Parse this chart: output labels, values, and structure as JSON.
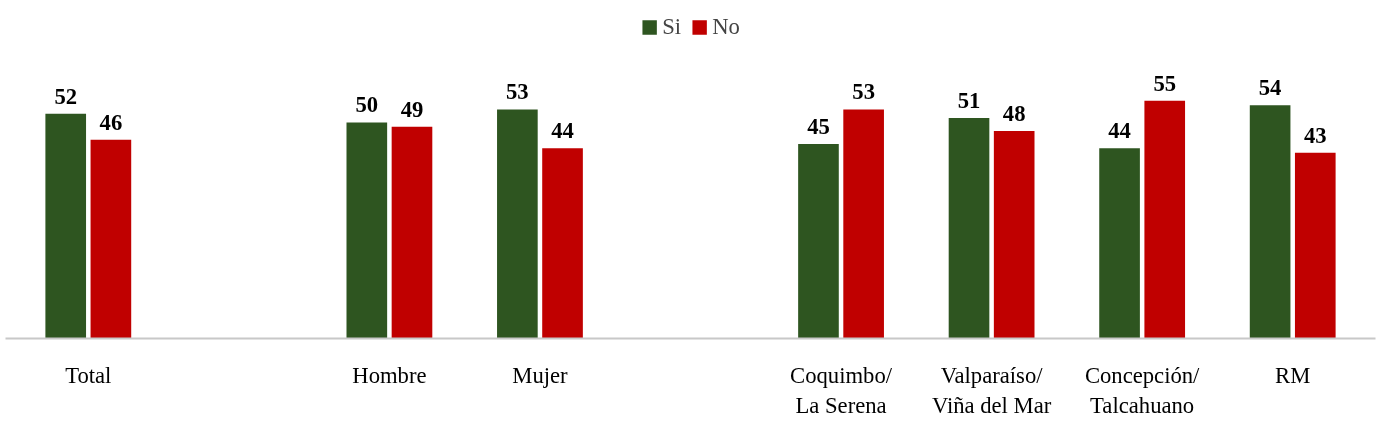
{
  "chart_data": {
    "type": "bar",
    "categories": [
      "Total",
      null,
      "Hombre",
      "Mujer",
      null,
      "Coquimbo/\nLa Serena",
      "Valparaíso/\nViña del Mar",
      "Concepción/\nTalcahuano",
      "RM"
    ],
    "series": [
      {
        "name": "Si",
        "color": "#2e5520",
        "values": [
          52,
          null,
          50,
          53,
          null,
          45,
          51,
          44,
          54
        ]
      },
      {
        "name": "No",
        "color": "#c00000",
        "values": [
          46,
          null,
          49,
          44,
          null,
          53,
          48,
          55,
          43
        ]
      }
    ],
    "data_labels": true,
    "legend": "top",
    "grid": false
  }
}
